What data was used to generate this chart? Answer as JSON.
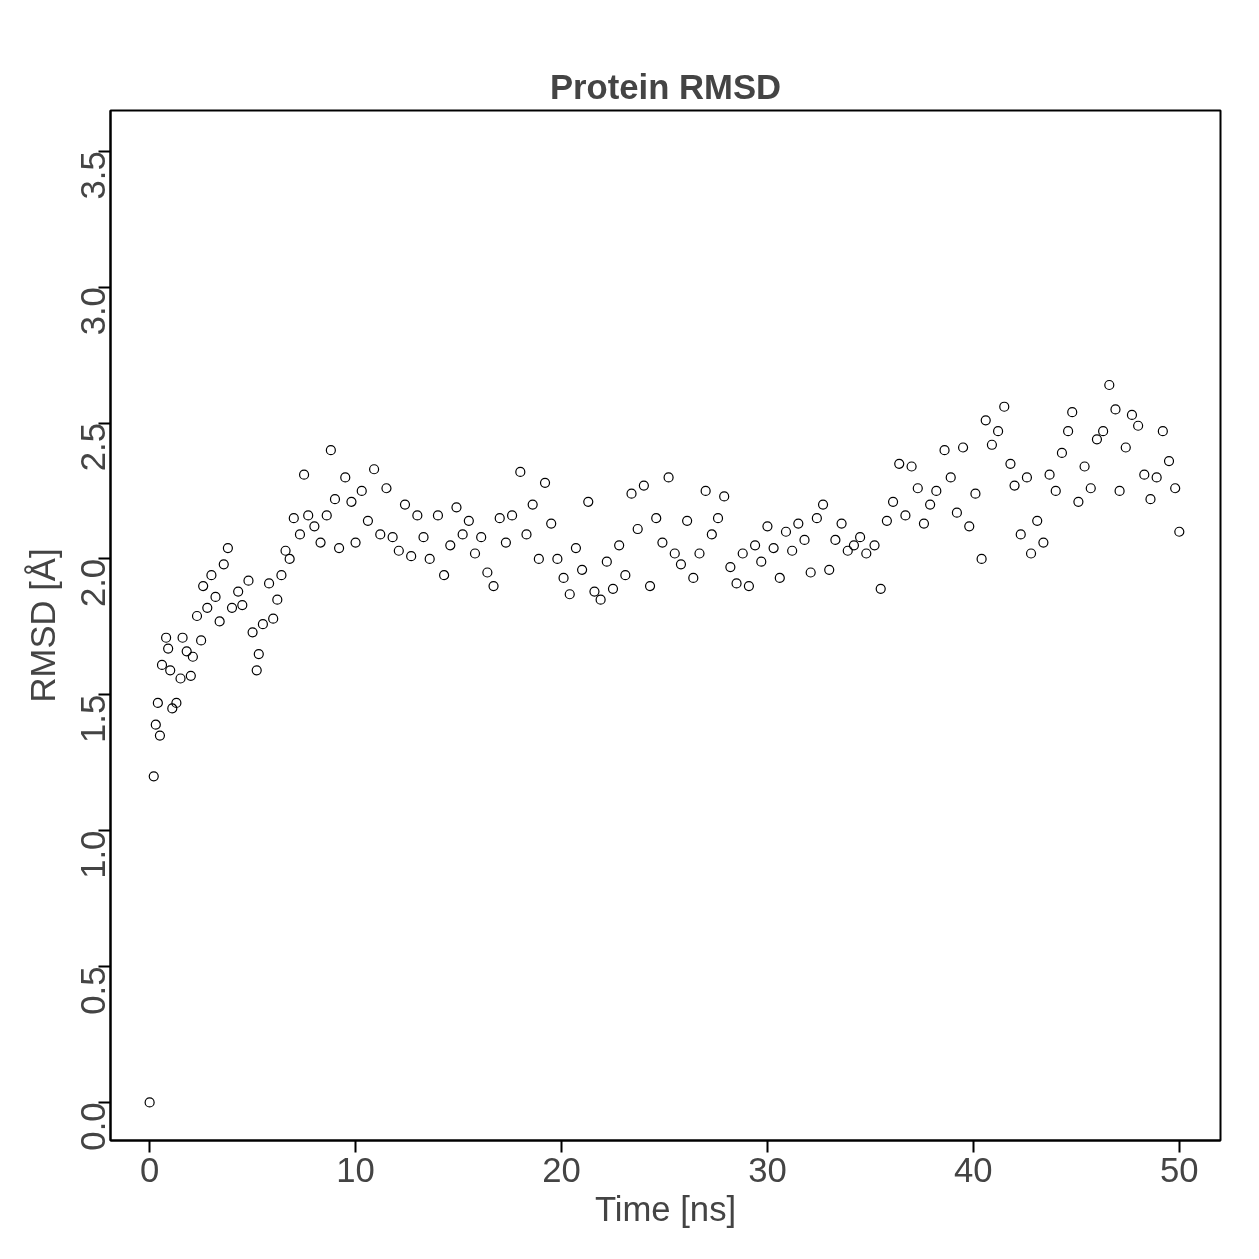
{
  "chart_data": {
    "type": "scatter",
    "title": "Protein RMSD",
    "xlabel": "Time [ns]",
    "ylabel": "RMSD [Å]",
    "xlim": [
      -1.9,
      52
    ],
    "ylim": [
      -0.14,
      3.65
    ],
    "xticks": [
      0,
      10,
      20,
      30,
      40,
      50
    ],
    "yticks": [
      {
        "value": 0,
        "label": "0.0"
      },
      {
        "value": 0.5,
        "label": "0.5"
      },
      {
        "value": 1,
        "label": "1.0"
      },
      {
        "value": 1.5,
        "label": "1.5"
      },
      {
        "value": 2,
        "label": "2.0"
      },
      {
        "value": 2.5,
        "label": "2.5"
      },
      {
        "value": 3,
        "label": "3.0"
      },
      {
        "value": 3.5,
        "label": "3.5"
      }
    ],
    "grid": false,
    "marker": "circle",
    "series": [
      {
        "color": "#000000",
        "x": [
          0,
          0.2,
          0.3,
          0.4,
          0.5,
          0.6,
          0.8,
          0.9,
          1.0,
          1.1,
          1.3,
          1.5,
          1.6,
          1.8,
          2.0,
          2.1,
          2.3,
          2.5,
          2.6,
          2.8,
          3.0,
          3.2,
          3.4,
          3.6,
          3.8,
          4.0,
          4.3,
          4.5,
          4.8,
          5.0,
          5.2,
          5.3,
          5.5,
          5.8,
          6.0,
          6.2,
          6.4,
          6.6,
          6.8,
          7.0,
          7.3,
          7.5,
          7.7,
          8.0,
          8.3,
          8.6,
          8.8,
          9.0,
          9.2,
          9.5,
          9.8,
          10.0,
          10.3,
          10.6,
          10.9,
          11.2,
          11.5,
          11.8,
          12.1,
          12.4,
          12.7,
          13.0,
          13.3,
          13.6,
          14.0,
          14.3,
          14.6,
          14.9,
          15.2,
          15.5,
          15.8,
          16.1,
          16.4,
          16.7,
          17.0,
          17.3,
          17.6,
          18.0,
          18.3,
          18.6,
          18.9,
          19.2,
          19.5,
          19.8,
          20.1,
          20.4,
          20.7,
          21.0,
          21.3,
          21.6,
          21.9,
          22.2,
          22.5,
          22.8,
          23.1,
          23.4,
          23.7,
          24.0,
          24.3,
          24.6,
          24.9,
          25.2,
          25.5,
          25.8,
          26.1,
          26.4,
          26.7,
          27.0,
          27.3,
          27.6,
          27.9,
          28.2,
          28.5,
          28.8,
          29.1,
          29.4,
          29.7,
          30.0,
          30.3,
          30.6,
          30.9,
          31.2,
          31.5,
          31.8,
          32.1,
          32.4,
          32.7,
          33.0,
          33.3,
          33.6,
          33.9,
          34.2,
          34.5,
          34.8,
          35.2,
          35.5,
          35.8,
          36.1,
          36.4,
          36.7,
          37.0,
          37.3,
          37.6,
          37.9,
          38.2,
          38.6,
          38.9,
          39.2,
          39.5,
          39.8,
          40.1,
          40.4,
          40.6,
          40.9,
          41.2,
          41.5,
          41.8,
          42.0,
          42.3,
          42.6,
          42.8,
          43.1,
          43.4,
          43.7,
          44.0,
          44.3,
          44.6,
          44.8,
          45.1,
          45.4,
          45.7,
          46.0,
          46.3,
          46.6,
          46.9,
          47.1,
          47.4,
          47.7,
          48.0,
          48.3,
          48.6,
          48.9,
          49.2,
          49.5,
          49.8,
          50.0
        ],
        "values": [
          0.0,
          1.2,
          1.39,
          1.47,
          1.35,
          1.61,
          1.71,
          1.67,
          1.59,
          1.45,
          1.47,
          1.56,
          1.71,
          1.66,
          1.57,
          1.64,
          1.79,
          1.7,
          1.9,
          1.82,
          1.94,
          1.86,
          1.77,
          1.98,
          2.04,
          1.82,
          1.88,
          1.83,
          1.92,
          1.73,
          1.59,
          1.65,
          1.76,
          1.91,
          1.78,
          1.85,
          1.94,
          2.03,
          2.0,
          2.15,
          2.09,
          2.31,
          2.16,
          2.12,
          2.06,
          2.16,
          2.4,
          2.22,
          2.04,
          2.3,
          2.21,
          2.06,
          2.25,
          2.14,
          2.33,
          2.09,
          2.26,
          2.08,
          2.03,
          2.2,
          2.01,
          2.16,
          2.08,
          2.0,
          2.16,
          1.94,
          2.05,
          2.19,
          2.09,
          2.14,
          2.02,
          2.08,
          1.95,
          1.9,
          2.15,
          2.06,
          2.16,
          2.32,
          2.09,
          2.2,
          2.0,
          2.28,
          2.13,
          2.0,
          1.93,
          1.87,
          2.04,
          1.96,
          2.21,
          1.88,
          1.85,
          1.99,
          1.89,
          2.05,
          1.94,
          2.24,
          2.11,
          2.27,
          1.9,
          2.15,
          2.06,
          2.3,
          2.02,
          1.98,
          2.14,
          1.93,
          2.02,
          2.25,
          2.09,
          2.15,
          2.23,
          1.97,
          1.91,
          2.02,
          1.9,
          2.05,
          1.99,
          2.12,
          2.04,
          1.93,
          2.1,
          2.03,
          2.13,
          2.07,
          1.95,
          2.15,
          2.2,
          1.96,
          2.07,
          2.13,
          2.03,
          2.05,
          2.08,
          2.02,
          2.05,
          1.89,
          2.14,
          2.21,
          2.35,
          2.16,
          2.34,
          2.26,
          2.13,
          2.2,
          2.25,
          2.4,
          2.3,
          2.17,
          2.41,
          2.12,
          2.24,
          2.0,
          2.51,
          2.42,
          2.47,
          2.56,
          2.35,
          2.27,
          2.09,
          2.3,
          2.02,
          2.14,
          2.06,
          2.31,
          2.25,
          2.39,
          2.47,
          2.54,
          2.21,
          2.34,
          2.26,
          2.44,
          2.47,
          2.64,
          2.55,
          2.25,
          2.41,
          2.53,
          2.49,
          2.31,
          2.22,
          2.3,
          2.47,
          2.36,
          2.26,
          2.1
        ]
      }
    ]
  }
}
